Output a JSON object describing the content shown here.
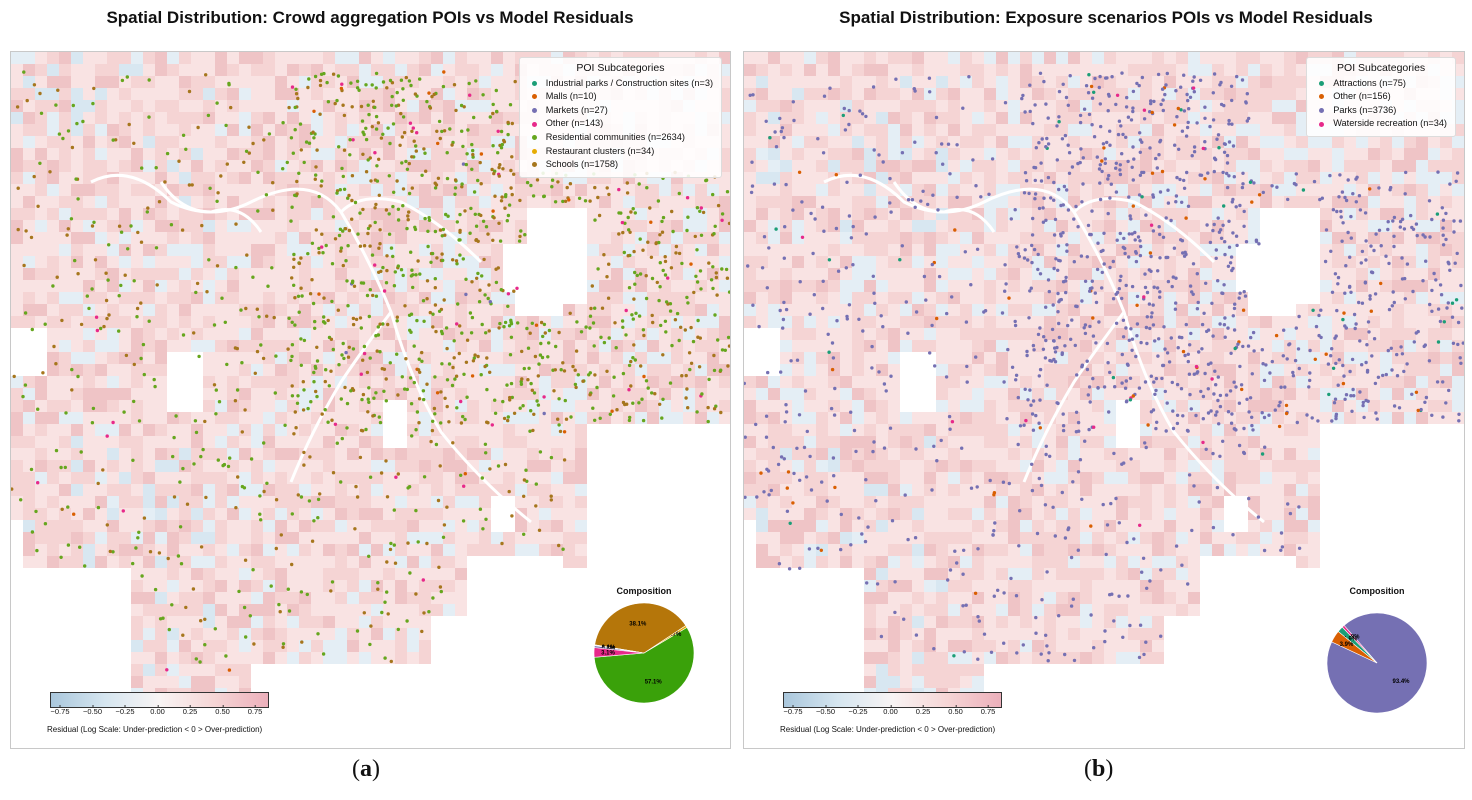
{
  "panels": [
    {
      "id": "a",
      "title": "Spatial Distribution: Crowd aggregation POIs vs Model Residuals",
      "sub_label_open": "(",
      "sub_label_letter": "a",
      "sub_label_close": ")",
      "legend_title": "POI Subcategories",
      "legend": [
        {
          "label": "Industrial parks / Construction sites (n=3)",
          "color": "#1b9e77"
        },
        {
          "label": "Malls (n=10)",
          "color": "#d95f02"
        },
        {
          "label": "Markets (n=27)",
          "color": "#7570b3"
        },
        {
          "label": "Other (n=143)",
          "color": "#e7298a"
        },
        {
          "label": "Residential communities (n=2634)",
          "color": "#66a61e"
        },
        {
          "label": "Restaurant clusters (n=34)",
          "color": "#e6ab02"
        },
        {
          "label": "Schools (n=1758)",
          "color": "#a6761d"
        }
      ],
      "pie_title": "Composition",
      "pie": [
        {
          "label": "57.1%",
          "value": 57.1,
          "color": "#3aa10a"
        },
        {
          "label": "0.7%",
          "value": 0.7,
          "color": "#e6ab02"
        },
        {
          "label": "38.1%",
          "value": 38.1,
          "color": "#b5760a"
        },
        {
          "label": "0.1%",
          "value": 0.1,
          "color": "#1b9e77"
        },
        {
          "label": "0.2%",
          "value": 0.2,
          "color": "#d95f02"
        },
        {
          "label": "0.6%",
          "value": 0.6,
          "color": "#7570b3"
        },
        {
          "label": "3.1%",
          "value": 3.1,
          "color": "#e7298a"
        }
      ],
      "colorbar_ticks": [
        "−0.75",
        "−0.50",
        "−0.25",
        "0.00",
        "0.25",
        "0.50",
        "0.75"
      ],
      "colorbar_label": "Residual (Log Scale: Under-prediction < 0 > Over-prediction)"
    },
    {
      "id": "b",
      "title": "Spatial Distribution: Exposure scenarios POIs vs Model Residuals",
      "sub_label_open": "(",
      "sub_label_letter": "b",
      "sub_label_close": ")",
      "legend_title": "POI Subcategories",
      "legend": [
        {
          "label": "Attractions (n=75)",
          "color": "#1b9e77"
        },
        {
          "label": "Other (n=156)",
          "color": "#d95f02"
        },
        {
          "label": "Parks (n=3736)",
          "color": "#7570b3"
        },
        {
          "label": "Waterside recreation (n=34)",
          "color": "#e7298a"
        }
      ],
      "pie_title": "Composition",
      "pie": [
        {
          "label": "93.4%",
          "value": 93.4,
          "color": "#7570b3"
        },
        {
          "label": "0.8%",
          "value": 0.8,
          "color": "#e7298a"
        },
        {
          "label": "1.9%",
          "value": 1.9,
          "color": "#1b9e77"
        },
        {
          "label": "3.9%",
          "value": 3.9,
          "color": "#d95f02"
        }
      ],
      "colorbar_ticks": [
        "−0.75",
        "−0.50",
        "−0.25",
        "0.00",
        "0.25",
        "0.50",
        "0.75"
      ],
      "colorbar_label": "Residual (Log Scale: Under-prediction < 0 > Over-prediction)"
    }
  ]
}
